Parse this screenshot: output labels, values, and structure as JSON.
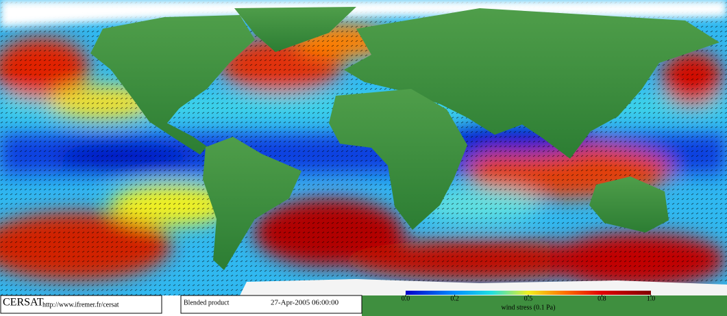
{
  "footer": {
    "logo": "CERSAT",
    "url": "http://www.ifremer.fr/cersat",
    "product": "Blended product",
    "timestamp": "27-Apr-2005 06:00:00"
  },
  "colorbar": {
    "label": "wind stress (0.1 Pa)",
    "lim": [
      0,
      1
    ],
    "ticks": [
      {
        "value": 0,
        "label": "0.0"
      },
      0.2,
      0.5,
      0.8,
      {
        "value": 1,
        "label": "1.0"
      }
    ]
  }
}
